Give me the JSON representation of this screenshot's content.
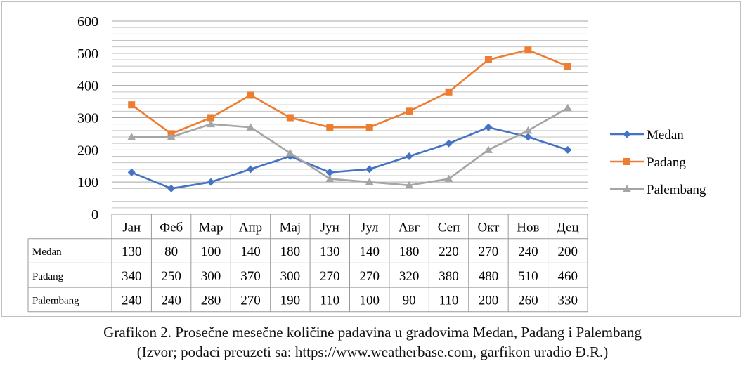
{
  "chart_data": {
    "type": "line",
    "categories": [
      "Јан",
      "Феб",
      "Мар",
      "Апр",
      "Мај",
      "Јун",
      "Јул",
      "Авг",
      "Сеп",
      "Окт",
      "Нов",
      "Дец"
    ],
    "ylim": [
      0,
      600
    ],
    "yticks": [
      0,
      100,
      200,
      300,
      400,
      500,
      600
    ],
    "grid": true,
    "legend": "right",
    "data_table": true,
    "series": [
      {
        "name": "Medan",
        "table_label": "Medan",
        "color": "#4472c4",
        "marker": "diamond",
        "values": [
          130,
          80,
          100,
          140,
          180,
          130,
          140,
          180,
          220,
          270,
          240,
          200
        ]
      },
      {
        "name": "Padang",
        "table_label": "Padang",
        "color": "#ed7d31",
        "marker": "square",
        "values": [
          340,
          250,
          300,
          370,
          300,
          270,
          270,
          320,
          380,
          480,
          510,
          460
        ]
      },
      {
        "name": "Palembang",
        "table_label": "Palembang",
        "color": "#a5a5a5",
        "marker": "triangle",
        "values": [
          240,
          240,
          280,
          270,
          190,
          110,
          100,
          90,
          110,
          200,
          260,
          330
        ]
      }
    ]
  },
  "caption": {
    "line1": "Grafikon 2. Prosečne mesečne količine padavina u gradovima Medan, Padang i Palembang",
    "line2": "(Izvor; podaci preuzeti sa: https://www.weatherbase.com, garfikon uradio Đ.R.)"
  }
}
